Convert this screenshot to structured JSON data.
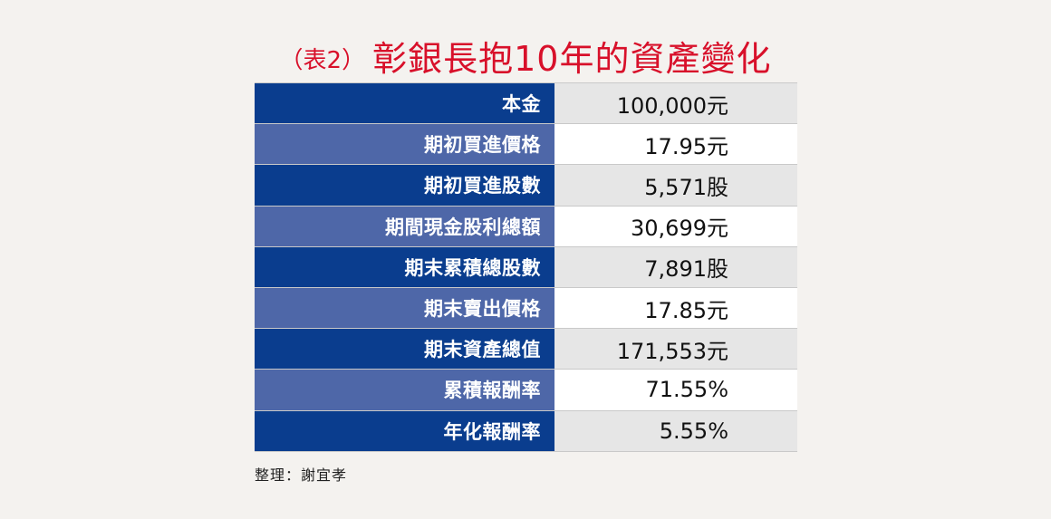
{
  "title": {
    "prefix": "（表2）",
    "main": "彰銀長抱10年的資產變化"
  },
  "rows": [
    {
      "label": "本金",
      "value": "100,000元"
    },
    {
      "label": "期初買進價格",
      "value": "17.95元"
    },
    {
      "label": "期初買進股數",
      "value": "5,571股"
    },
    {
      "label": "期間現金股利總額",
      "value": "30,699元"
    },
    {
      "label": "期末累積總股數",
      "value": "7,891股"
    },
    {
      "label": "期末賣出價格",
      "value": "17.85元"
    },
    {
      "label": "期末資產總值",
      "value": "171,553元"
    },
    {
      "label": "累積報酬率",
      "value": "71.55%"
    },
    {
      "label": "年化報酬率",
      "value": "5.55%"
    }
  ],
  "footer": "整理：謝宜孝",
  "colors": {
    "title": "#d8102a",
    "label_dark": "#0a3d8e",
    "label_light": "#4e67a8",
    "value_dark": "#e6e6e6",
    "value_light": "#ffffff",
    "background": "#f4f2ef"
  }
}
